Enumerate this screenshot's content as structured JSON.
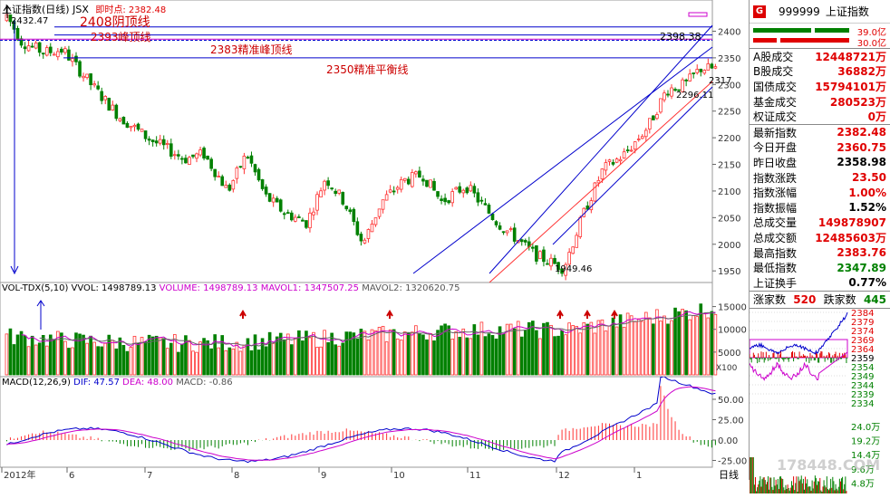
{
  "colors": {
    "up": "#ff3333",
    "down": "#008000",
    "blue": "#0000cc",
    "magenta": "#cc00cc",
    "annot_red": "#cc0000"
  },
  "main_chart": {
    "title": "上证指数(日线)",
    "suffix": "JSX",
    "realtime_label": "即时点: 2382.48",
    "high_label": "2432.47",
    "right_price_label": "2398.38",
    "low_label": "1949.46",
    "price_2317": "2317",
    "price_2296": "2296.11",
    "annotations": {
      "a2408": "2408阴顶线",
      "a2393": "2393峰顶线",
      "a2383": "2383精准峰顶线",
      "a2350": "2350精准平衡线"
    },
    "y_ticks": [
      "2400",
      "2350",
      "2300",
      "2250",
      "2200",
      "2150",
      "2100",
      "2050",
      "2000",
      "1950"
    ],
    "x_labels": [
      "2012年",
      "6",
      "7",
      "8",
      "9",
      "10",
      "11",
      "12",
      "1"
    ],
    "bottom_right_label": "日线"
  },
  "vol_chart": {
    "title": "VOL-TDX(5,10)",
    "vvol": "VVOL: 1498789.13",
    "volume": "VOLUME: 1498789.13",
    "mavol1": "MAVOL1: 1347507.25",
    "mavol2": "MAVOL2: 1320620.75",
    "y_ticks": [
      "15000",
      "10000",
      "5000"
    ],
    "unit": "X100"
  },
  "macd_chart": {
    "title": "MACD(12,26,9)",
    "dif": "DIF: 47.57",
    "dea": "DEA: 48.00",
    "macd": "MACD: -0.86",
    "y_ticks": [
      "50.00",
      "25.00",
      "0.00",
      "-25.00"
    ]
  },
  "panel": {
    "badge": "G",
    "code": "999999",
    "name": "上证指数",
    "bar_top_value": "39.0亿",
    "bar_bottom_value": "30.0亿",
    "rows1": [
      {
        "label": "A股成交",
        "value": "12448721万",
        "color": "red"
      },
      {
        "label": "B股成交",
        "value": "36882万",
        "color": "red"
      },
      {
        "label": "国债成交",
        "value": "15794101万",
        "color": "red"
      },
      {
        "label": "基金成交",
        "value": "280523万",
        "color": "red"
      },
      {
        "label": "权证成交",
        "value": "0万",
        "color": "red"
      }
    ],
    "rows2": [
      {
        "label": "最新指数",
        "value": "2382.48",
        "color": "red"
      },
      {
        "label": "今日开盘",
        "value": "2360.75",
        "color": "red"
      },
      {
        "label": "昨日收盘",
        "value": "2358.98",
        "color": "black"
      },
      {
        "label": "指数涨跌",
        "value": "23.50",
        "color": "red"
      },
      {
        "label": "指数涨幅",
        "value": "1.00%",
        "color": "red"
      },
      {
        "label": "指数振幅",
        "value": "1.52%",
        "color": "black"
      },
      {
        "label": "总成交量",
        "value": "149878907",
        "color": "red"
      },
      {
        "label": "总成交额",
        "value": "12485603万",
        "color": "red"
      },
      {
        "label": "最高指数",
        "value": "2383.76",
        "color": "red"
      },
      {
        "label": "最低指数",
        "value": "2347.89",
        "color": "green"
      },
      {
        "label": "上证换手",
        "value": "0.77%",
        "color": "black"
      }
    ],
    "up_label": "涨家数",
    "up_count": "520",
    "down_label": "跌家数",
    "down_count": "445",
    "mini_ticks": [
      "2384",
      "2379",
      "2374",
      "2369",
      "2364",
      "2359",
      "2354",
      "2349",
      "2344",
      "2339",
      "2334"
    ],
    "mini_vol_ticks": [
      "24.0万",
      "19.2万",
      "14.4万",
      "9.6万",
      "4.8万"
    ],
    "watermark": "178448.COM"
  }
}
